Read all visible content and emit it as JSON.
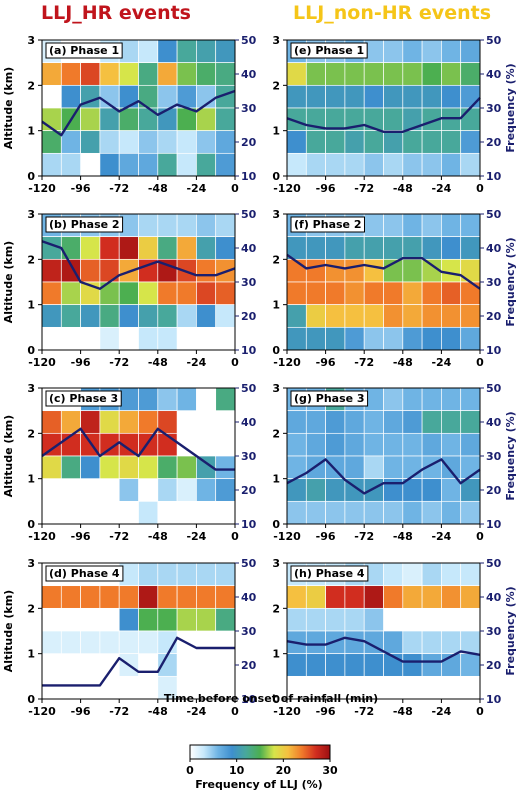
{
  "figure": {
    "left_title": "LLJ_HR events",
    "right_title": "LLJ_non-HR events",
    "left_title_color": "#c0141c",
    "right_title_color": "#f5c518",
    "ylabel_left": "Altitude (km)",
    "ylabel_right": "Frequency (%)",
    "xlabel": "Time before onset of rainfall  (min)",
    "colorbar_label": "Frequency of LLJ (%)",
    "colorbar_ticks": [
      0,
      10,
      20,
      30
    ],
    "colorbar_colors": [
      "#ffffff",
      "#c6e8fb",
      "#6fb4e4",
      "#3e8fce",
      "#48a89b",
      "#4caf50",
      "#d6e54a",
      "#f5c040",
      "#f07a2a",
      "#d12d1f",
      "#9c0f12"
    ],
    "line_color": "#1a1f6e",
    "right_axis_color": "#1a1f6e"
  },
  "chart_data": [
    {
      "panel": "(a) Phase 1",
      "column": "LLJ_HR events",
      "type": "heatmap",
      "x": [
        -120,
        -108,
        -96,
        -84,
        -72,
        -60,
        -48,
        -36,
        -24,
        -12,
        0
      ],
      "y_levels": [
        0,
        0.5,
        1.0,
        1.5,
        2.0,
        2.5,
        3.0
      ],
      "xlim": [
        -120,
        0
      ],
      "ylim": [
        0,
        3
      ],
      "y2lim": [
        10,
        50
      ],
      "xticks": [
        -120,
        -96,
        -72,
        -48,
        -24,
        0
      ],
      "yticks": [
        0,
        1,
        2,
        3
      ],
      "y2ticks": [
        10,
        20,
        30,
        40,
        50
      ],
      "cells": [
        [
          2,
          0,
          0,
          3,
          4,
          3,
          9,
          12,
          11,
          10
        ],
        [
          22,
          24,
          26,
          21,
          18,
          13,
          22,
          16,
          14,
          13
        ],
        [
          0,
          9,
          11,
          5,
          9,
          13,
          5,
          8,
          5,
          12
        ],
        [
          17,
          15,
          17,
          11,
          14,
          12,
          10,
          15,
          17,
          12
        ],
        [
          14,
          6,
          11,
          4,
          3,
          5,
          4,
          3,
          5,
          7
        ],
        [
          4,
          4,
          0,
          9,
          7,
          7,
          12,
          3,
          12,
          8
        ]
      ],
      "line": [
        26,
        22,
        31,
        33,
        29,
        32,
        28,
        31,
        29,
        33,
        35
      ]
    },
    {
      "panel": "(b) Phase 2",
      "column": "LLJ_HR events",
      "type": "heatmap",
      "x": [
        -120,
        -108,
        -96,
        -84,
        -72,
        -60,
        -48,
        -36,
        -24,
        -12,
        0
      ],
      "y_levels": [
        0,
        0.5,
        1.0,
        1.5,
        2.0,
        2.5,
        3.0
      ],
      "xlim": [
        -120,
        0
      ],
      "ylim": [
        0,
        3
      ],
      "y2lim": [
        10,
        50
      ],
      "xticks": [
        -120,
        -96,
        -72,
        -48,
        -24,
        0
      ],
      "yticks": [
        0,
        1,
        2,
        3
      ],
      "y2ticks": [
        10,
        20,
        30,
        40,
        50
      ],
      "cells": [
        [
          6,
          5,
          5,
          5,
          5,
          4,
          4,
          4,
          5,
          4
        ],
        [
          12,
          14,
          18,
          27,
          29,
          20,
          13,
          22,
          11,
          9
        ],
        [
          28,
          29,
          25,
          26,
          22,
          27,
          29,
          26,
          24,
          23
        ],
        [
          24,
          17,
          19,
          16,
          15,
          18,
          24,
          24,
          26,
          25
        ],
        [
          10,
          12,
          10,
          13,
          9,
          11,
          12,
          4,
          9,
          3
        ],
        [
          0,
          0,
          0,
          2,
          0,
          3,
          3,
          0,
          0,
          0
        ]
      ],
      "line": [
        42,
        40,
        30,
        28,
        32,
        34,
        36,
        34,
        32,
        32,
        34
      ]
    },
    {
      "panel": "(c) Phase 3",
      "column": "LLJ_HR events",
      "type": "heatmap",
      "x": [
        -120,
        -108,
        -96,
        -84,
        -72,
        -60,
        -48,
        -36,
        -24,
        -12,
        0
      ],
      "y_levels": [
        0,
        0.5,
        1.0,
        1.5,
        2.0,
        2.5,
        3.0
      ],
      "xlim": [
        -120,
        0
      ],
      "ylim": [
        0,
        3
      ],
      "y2lim": [
        10,
        50
      ],
      "xticks": [
        -120,
        -96,
        -72,
        -48,
        -24,
        0
      ],
      "yticks": [
        0,
        1,
        2,
        3
      ],
      "y2ticks": [
        10,
        20,
        30,
        40,
        50
      ],
      "cells": [
        [
          0,
          0,
          8,
          8,
          8,
          8,
          5,
          6,
          0,
          13
        ],
        [
          25,
          22,
          28,
          19,
          22,
          24,
          26,
          0,
          0,
          0
        ],
        [
          27,
          27,
          27,
          27,
          27,
          27,
          27,
          0,
          0,
          0
        ],
        [
          19,
          13,
          9,
          18,
          19,
          18,
          14,
          16,
          11,
          6
        ],
        [
          0,
          0,
          0,
          0,
          5,
          0,
          4,
          2,
          6,
          8
        ],
        [
          0,
          0,
          0,
          0,
          0,
          3,
          0,
          0,
          0,
          0
        ]
      ],
      "line": [
        30,
        34,
        38,
        30,
        34,
        30,
        38,
        34,
        30,
        26,
        26
      ]
    },
    {
      "panel": "(d) Phase 4",
      "column": "LLJ_HR events",
      "type": "heatmap",
      "x": [
        -120,
        -108,
        -96,
        -84,
        -72,
        -60,
        -48,
        -36,
        -24,
        -12,
        0
      ],
      "y_levels": [
        0,
        0.5,
        1.0,
        1.5,
        2.0,
        2.5,
        3.0
      ],
      "xlim": [
        -120,
        0
      ],
      "ylim": [
        0,
        3
      ],
      "y2lim": [
        10,
        50
      ],
      "xticks": [
        -120,
        -96,
        -72,
        -48,
        -24,
        0
      ],
      "yticks": [
        0,
        1,
        2,
        3
      ],
      "y2ticks": [
        10,
        20,
        30,
        40,
        50
      ],
      "cells": [
        [
          0,
          0,
          0,
          0,
          3,
          4,
          4,
          4,
          4,
          4
        ],
        [
          24,
          24,
          24,
          24,
          24,
          29,
          24,
          24,
          24,
          24
        ],
        [
          0,
          0,
          0,
          0,
          9,
          15,
          15,
          17,
          17,
          13
        ],
        [
          2,
          2,
          2,
          2,
          2,
          2,
          3,
          0,
          0,
          0
        ],
        [
          0,
          0,
          0,
          0,
          2,
          0,
          4,
          0,
          0,
          0
        ],
        [
          0,
          0,
          0,
          0,
          0,
          0,
          2,
          0,
          0,
          0
        ]
      ],
      "line": [
        14,
        14,
        14,
        14,
        22,
        18,
        18,
        28,
        25,
        25,
        25
      ]
    },
    {
      "panel": "(e) Phase 1",
      "column": "LLJ_non-HR events",
      "type": "heatmap",
      "x": [
        -120,
        -108,
        -96,
        -84,
        -72,
        -60,
        -48,
        -36,
        -24,
        -12,
        0
      ],
      "y_levels": [
        0,
        0.5,
        1.0,
        1.5,
        2.0,
        2.5,
        3.0
      ],
      "xlim": [
        -120,
        0
      ],
      "ylim": [
        0,
        3
      ],
      "y2lim": [
        10,
        50
      ],
      "xticks": [
        -120,
        -96,
        -72,
        -48,
        -24,
        0
      ],
      "yticks": [
        0,
        1,
        2,
        3
      ],
      "y2ticks": [
        10,
        20,
        30,
        40,
        50
      ],
      "cells": [
        [
          6,
          5,
          5,
          6,
          5,
          5,
          6,
          5,
          6,
          7
        ],
        [
          19,
          16,
          16,
          16,
          16,
          16,
          16,
          15,
          16,
          14
        ],
        [
          10,
          10,
          10,
          10,
          9,
          10,
          10,
          10,
          9,
          8
        ],
        [
          12,
          12,
          12,
          12,
          12,
          12,
          11,
          12,
          12,
          12
        ],
        [
          9,
          12,
          12,
          11,
          12,
          11,
          12,
          12,
          12,
          8
        ],
        [
          3,
          4,
          4,
          4,
          5,
          4,
          5,
          5,
          6,
          4
        ]
      ],
      "line": [
        27,
        25,
        24,
        24,
        25,
        23,
        23,
        25,
        27,
        27,
        33
      ]
    },
    {
      "panel": "(f) Phase 2",
      "column": "LLJ_non-HR events",
      "type": "heatmap",
      "x": [
        -120,
        -108,
        -96,
        -84,
        -72,
        -60,
        -48,
        -36,
        -24,
        -12,
        0
      ],
      "y_levels": [
        0,
        0.5,
        1.0,
        1.5,
        2.0,
        2.5,
        3.0
      ],
      "xlim": [
        -120,
        0
      ],
      "ylim": [
        0,
        3
      ],
      "y2lim": [
        10,
        50
      ],
      "xticks": [
        -120,
        -96,
        -72,
        -48,
        -24,
        0
      ],
      "yticks": [
        0,
        1,
        2,
        3
      ],
      "y2ticks": [
        10,
        20,
        30,
        40,
        50
      ],
      "cells": [
        [
          6,
          5,
          5,
          5,
          5,
          5,
          6,
          5,
          6,
          6
        ],
        [
          10,
          10,
          10,
          11,
          11,
          11,
          11,
          10,
          9,
          10
        ],
        [
          24,
          24,
          23,
          23,
          21,
          16,
          16,
          17,
          18,
          19
        ],
        [
          24,
          24,
          24,
          23,
          24,
          24,
          22,
          24,
          25,
          24
        ],
        [
          11,
          20,
          21,
          21,
          21,
          23,
          22,
          23,
          23,
          23
        ],
        [
          10,
          10,
          10,
          8,
          5,
          5,
          8,
          9,
          9,
          7
        ]
      ],
      "line": [
        38,
        34,
        35,
        34,
        35,
        34,
        37,
        37,
        33,
        32,
        28
      ]
    },
    {
      "panel": "(g) Phase 3",
      "column": "LLJ_non-HR events",
      "type": "heatmap",
      "x": [
        -120,
        -108,
        -96,
        -84,
        -72,
        -60,
        -48,
        -36,
        -24,
        -12,
        0
      ],
      "y_levels": [
        0,
        0.5,
        1.0,
        1.5,
        2.0,
        2.5,
        3.0
      ],
      "xlim": [
        -120,
        0
      ],
      "ylim": [
        0,
        3
      ],
      "y2lim": [
        10,
        50
      ],
      "xticks": [
        -120,
        -96,
        -72,
        -48,
        -24,
        0
      ],
      "yticks": [
        0,
        1,
        2,
        3
      ],
      "y2ticks": [
        10,
        20,
        30,
        40,
        50
      ],
      "cells": [
        [
          6,
          6,
          12,
          6,
          6,
          5,
          6,
          6,
          6,
          6
        ],
        [
          7,
          7,
          8,
          7,
          6,
          7,
          8,
          12,
          12,
          12
        ],
        [
          6,
          7,
          8,
          7,
          6,
          6,
          6,
          7,
          6,
          7
        ],
        [
          6,
          7,
          7,
          7,
          4,
          6,
          6,
          6,
          7,
          6
        ],
        [
          10,
          11,
          10,
          10,
          10,
          9,
          9,
          9,
          6,
          10
        ],
        [
          5,
          5,
          5,
          5,
          5,
          5,
          6,
          5,
          6,
          5
        ]
      ],
      "line": [
        22,
        25,
        29,
        23,
        19,
        22,
        22,
        26,
        29,
        22,
        26
      ]
    },
    {
      "panel": "(h) Phase 4",
      "column": "LLJ_non-HR events",
      "type": "heatmap",
      "x": [
        -120,
        -108,
        -96,
        -84,
        -72,
        -60,
        -48,
        -36,
        -24,
        -12,
        0
      ],
      "y_levels": [
        0,
        0.5,
        1.0,
        1.5,
        2.0,
        2.5,
        3.0
      ],
      "xlim": [
        -120,
        0
      ],
      "ylim": [
        0,
        3
      ],
      "y2lim": [
        10,
        50
      ],
      "xticks": [
        -120,
        -96,
        -72,
        -48,
        -24,
        0
      ],
      "yticks": [
        0,
        1,
        2,
        3
      ],
      "y2ticks": [
        10,
        20,
        30,
        40,
        50
      ],
      "cells": [
        [
          3,
          3,
          3,
          4,
          4,
          3,
          2,
          4,
          3,
          3
        ],
        [
          21,
          20,
          27,
          27,
          29,
          24,
          22,
          22,
          23,
          22
        ],
        [
          4,
          4,
          4,
          4,
          5,
          0,
          0,
          0,
          0,
          0
        ],
        [
          7,
          7,
          7,
          7,
          7,
          7,
          4,
          4,
          4,
          4
        ],
        [
          9,
          9,
          9,
          9,
          9,
          9,
          9,
          7,
          7,
          6
        ],
        [
          0,
          0,
          0,
          0,
          0,
          0,
          0,
          0,
          0,
          0
        ]
      ],
      "line": [
        27,
        26,
        26,
        28,
        27,
        24,
        21,
        21,
        21,
        24,
        23
      ]
    }
  ]
}
